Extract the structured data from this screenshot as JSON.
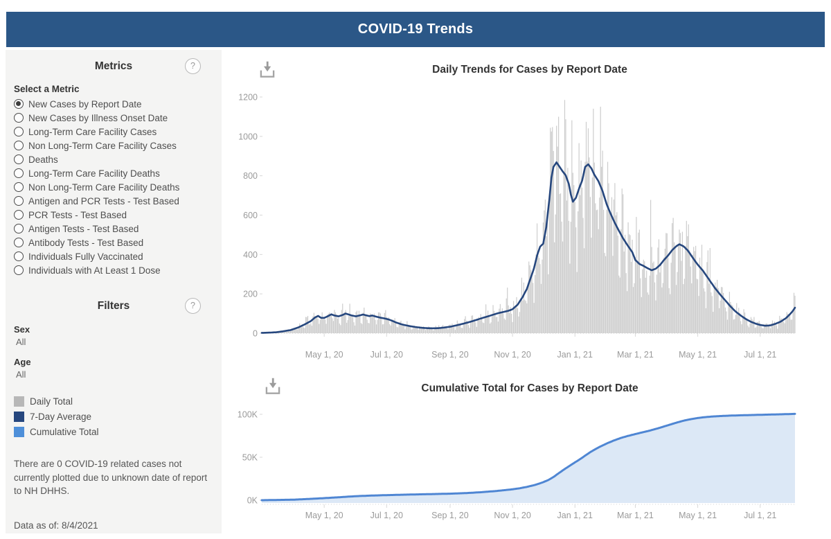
{
  "header": {
    "title": "COVID-19 Trends"
  },
  "sidebar": {
    "metrics_heading": "Metrics",
    "metrics_help_glyph": "?",
    "select_label": "Select a Metric",
    "metric_options": [
      {
        "label": "New Cases by Report Date",
        "selected": true
      },
      {
        "label": "New Cases by Illness Onset Date",
        "selected": false
      },
      {
        "label": "Long-Term Care Facility Cases",
        "selected": false
      },
      {
        "label": "Non Long-Term Care Facility Cases",
        "selected": false
      },
      {
        "label": "Deaths",
        "selected": false
      },
      {
        "label": "Long-Term Care Facility Deaths",
        "selected": false
      },
      {
        "label": "Non Long-Term Care Facility Deaths",
        "selected": false
      },
      {
        "label": "Antigen and PCR Tests - Test Based",
        "selected": false
      },
      {
        "label": "PCR Tests - Test Based",
        "selected": false
      },
      {
        "label": "Antigen Tests - Test Based",
        "selected": false
      },
      {
        "label": "Antibody Tests - Test Based",
        "selected": false
      },
      {
        "label": "Individuals Fully Vaccinated",
        "selected": false
      },
      {
        "label": "Individuals with At Least 1 Dose",
        "selected": false
      }
    ],
    "filters_heading": "Filters",
    "filters_help_glyph": "?",
    "filters": [
      {
        "name": "Sex",
        "value": "All"
      },
      {
        "name": "Age",
        "value": "All"
      }
    ],
    "legend": [
      {
        "label": "Daily Total",
        "color": "#b7b7b7"
      },
      {
        "label": "7-Day Average",
        "color": "#26477e"
      },
      {
        "label": "Cumulative Total",
        "color": "#4e8fd9"
      }
    ],
    "note": "There are 0 COVID-19 related cases not currently plotted due to unknown date of report to NH DHHS.",
    "data_as_of": "Data as of: 8/4/2021"
  },
  "chart_data": [
    {
      "type": "bar",
      "title": "Daily Trends for Cases by Report Date",
      "x_axis_note": "days since Mar 1, 2020; range Mar 1, 2020 - Aug 4, 2021",
      "x_end_day": 521,
      "ylim": [
        0,
        1200
      ],
      "y_ticks": [
        0,
        200,
        400,
        600,
        800,
        1000,
        1200
      ],
      "x_ticks": [
        {
          "day": 61,
          "label": "May 1, 20"
        },
        {
          "day": 122,
          "label": "Jul 1, 20"
        },
        {
          "day": 184,
          "label": "Sep 1, 20"
        },
        {
          "day": 245,
          "label": "Nov 1, 20"
        },
        {
          "day": 306,
          "label": "Jan 1, 21"
        },
        {
          "day": 365,
          "label": "Mar 1, 21"
        },
        {
          "day": 426,
          "label": "May 1, 21"
        },
        {
          "day": 487,
          "label": "Jul 1, 21"
        }
      ],
      "grid": "none (dotted zero baseline only)",
      "legend_position": "left sidebar",
      "series": [
        {
          "name": "Daily Total",
          "render": "bars",
          "color": "#cdcdcd",
          "generation": "bars approximated per day = 7-day average x weekday factor x seeded jitter, capped",
          "weekday_factors": [
            0.55,
            1.02,
            1.27,
            1.15,
            1.05,
            0.93,
            0.68
          ],
          "jitter_base": 0.78,
          "jitter_span": 0.5,
          "spike_chance": 0.06,
          "spike_mult": 1.35,
          "seed": 20210804,
          "cap": 1185,
          "peak_daily_max": 1190
        },
        {
          "name": "7-Day Average",
          "render": "line",
          "color": "#26477e",
          "points": [
            [
              0,
              2
            ],
            [
              7,
              3
            ],
            [
              14,
              5
            ],
            [
              21,
              10
            ],
            [
              28,
              16
            ],
            [
              35,
              28
            ],
            [
              42,
              45
            ],
            [
              48,
              62
            ],
            [
              52,
              80
            ],
            [
              55,
              88
            ],
            [
              58,
              78
            ],
            [
              61,
              78
            ],
            [
              64,
              85
            ],
            [
              68,
              96
            ],
            [
              71,
              90
            ],
            [
              75,
              86
            ],
            [
              79,
              93
            ],
            [
              82,
              100
            ],
            [
              85,
              95
            ],
            [
              88,
              90
            ],
            [
              92,
              86
            ],
            [
              96,
              91
            ],
            [
              99,
              95
            ],
            [
              102,
              91
            ],
            [
              105,
              87
            ],
            [
              108,
              90
            ],
            [
              112,
              84
            ],
            [
              116,
              79
            ],
            [
              120,
              75
            ],
            [
              124,
              70
            ],
            [
              128,
              62
            ],
            [
              132,
              53
            ],
            [
              136,
              46
            ],
            [
              141,
              40
            ],
            [
              146,
              35
            ],
            [
              151,
              31
            ],
            [
              156,
              28
            ],
            [
              161,
              26
            ],
            [
              167,
              25
            ],
            [
              173,
              26
            ],
            [
              178,
              29
            ],
            [
              184,
              33
            ],
            [
              191,
              41
            ],
            [
              198,
              50
            ],
            [
              205,
              60
            ],
            [
              211,
              70
            ],
            [
              216,
              78
            ],
            [
              221,
              86
            ],
            [
              226,
              94
            ],
            [
              231,
              102
            ],
            [
              236,
              108
            ],
            [
              241,
              114
            ],
            [
              245,
              122
            ],
            [
              250,
              145
            ],
            [
              255,
              185
            ],
            [
              259,
              225
            ],
            [
              263,
              285
            ],
            [
              266,
              330
            ],
            [
              269,
              395
            ],
            [
              272,
              440
            ],
            [
              275,
              455
            ],
            [
              278,
              540
            ],
            [
              281,
              680
            ],
            [
              283,
              790
            ],
            [
              285,
              845
            ],
            [
              288,
              868
            ],
            [
              291,
              845
            ],
            [
              294,
              822
            ],
            [
              297,
              802
            ],
            [
              300,
              758
            ],
            [
              302,
              705
            ],
            [
              304,
              668
            ],
            [
              307,
              688
            ],
            [
              310,
              735
            ],
            [
              313,
              775
            ],
            [
              316,
              845
            ],
            [
              319,
              858
            ],
            [
              322,
              838
            ],
            [
              325,
              805
            ],
            [
              329,
              772
            ],
            [
              333,
              722
            ],
            [
              337,
              655
            ],
            [
              341,
              605
            ],
            [
              345,
              560
            ],
            [
              349,
              520
            ],
            [
              353,
              482
            ],
            [
              358,
              442
            ],
            [
              362,
              412
            ],
            [
              365,
              372
            ],
            [
              369,
              352
            ],
            [
              373,
              342
            ],
            [
              377,
              330
            ],
            [
              381,
              320
            ],
            [
              385,
              328
            ],
            [
              389,
              346
            ],
            [
              393,
              372
            ],
            [
              397,
              395
            ],
            [
              401,
              422
            ],
            [
              405,
              442
            ],
            [
              408,
              452
            ],
            [
              412,
              442
            ],
            [
              416,
              422
            ],
            [
              420,
              392
            ],
            [
              424,
              362
            ],
            [
              427,
              342
            ],
            [
              431,
              318
            ],
            [
              435,
              288
            ],
            [
              439,
              258
            ],
            [
              443,
              228
            ],
            [
              448,
              196
            ],
            [
              453,
              166
            ],
            [
              458,
              136
            ],
            [
              463,
              110
            ],
            [
              468,
              90
            ],
            [
              473,
              72
            ],
            [
              478,
              58
            ],
            [
              483,
              48
            ],
            [
              487,
              42
            ],
            [
              492,
              38
            ],
            [
              497,
              40
            ],
            [
              502,
              48
            ],
            [
              507,
              59
            ],
            [
              512,
              76
            ],
            [
              516,
              96
            ],
            [
              519,
              114
            ],
            [
              521,
              130
            ]
          ]
        }
      ]
    },
    {
      "type": "area",
      "title": "Cumulative Total for Cases by Report Date",
      "x_axis_note": "days since Mar 1, 2020; range Mar 1, 2020 - Aug 4, 2021",
      "x_end_day": 521,
      "ylim_thousands": [
        0,
        105
      ],
      "y_ticks": [
        {
          "v": 0,
          "label": "0K"
        },
        {
          "v": 50,
          "label": "50K"
        },
        {
          "v": 100,
          "label": "100K"
        }
      ],
      "x_ticks": [
        {
          "day": 61,
          "label": "May 1, 20"
        },
        {
          "day": 122,
          "label": "Jul 1, 20"
        },
        {
          "day": 184,
          "label": "Sep 1, 20"
        },
        {
          "day": 245,
          "label": "Nov 1, 20"
        },
        {
          "day": 306,
          "label": "Jan 1, 21"
        },
        {
          "day": 365,
          "label": "Mar 1, 21"
        },
        {
          "day": 426,
          "label": "May 1, 21"
        },
        {
          "day": 487,
          "label": "Jul 1, 21"
        }
      ],
      "grid": "none",
      "series": [
        {
          "name": "Cumulative Total",
          "render": "area",
          "line_color": "#4f86d3",
          "fill_color": "#dce8f6",
          "points_thousands": [
            [
              0,
              0
            ],
            [
              31,
              0.6
            ],
            [
              45,
              1.4
            ],
            [
              61,
              2.4
            ],
            [
              75,
              3.4
            ],
            [
              92,
              4.7
            ],
            [
              107,
              5.4
            ],
            [
              122,
              5.9
            ],
            [
              138,
              6.4
            ],
            [
              153,
              6.8
            ],
            [
              169,
              7.2
            ],
            [
              184,
              7.6
            ],
            [
              200,
              8.3
            ],
            [
              214,
              9.3
            ],
            [
              228,
              10.6
            ],
            [
              238,
              11.8
            ],
            [
              245,
              12.7
            ],
            [
              252,
              13.9
            ],
            [
              259,
              15.5
            ],
            [
              266,
              17.5
            ],
            [
              271,
              19.3
            ],
            [
              275,
              21
            ],
            [
              280,
              23.5
            ],
            [
              285,
              27
            ],
            [
              290,
              31.3
            ],
            [
              295,
              35.5
            ],
            [
              300,
              39.4
            ],
            [
              306,
              44
            ],
            [
              311,
              47.8
            ],
            [
              316,
              51.9
            ],
            [
              321,
              56
            ],
            [
              326,
              59.4
            ],
            [
              330,
              62
            ],
            [
              337,
              66
            ],
            [
              344,
              69.5
            ],
            [
              351,
              72.5
            ],
            [
              358,
              74.9
            ],
            [
              365,
              77
            ],
            [
              372,
              79
            ],
            [
              379,
              81
            ],
            [
              386,
              83.3
            ],
            [
              393,
              85.8
            ],
            [
              400,
              88.4
            ],
            [
              407,
              90.9
            ],
            [
              413,
              92.8
            ],
            [
              420,
              94.5
            ],
            [
              426,
              95.7
            ],
            [
              433,
              96.7
            ],
            [
              440,
              97.4
            ],
            [
              447,
              97.9
            ],
            [
              454,
              98.3
            ],
            [
              461,
              98.6
            ],
            [
              470,
              98.9
            ],
            [
              480,
              99.2
            ],
            [
              490,
              99.5
            ],
            [
              500,
              99.8
            ],
            [
              510,
              100.1
            ],
            [
              521,
              100.5
            ]
          ]
        }
      ]
    }
  ]
}
